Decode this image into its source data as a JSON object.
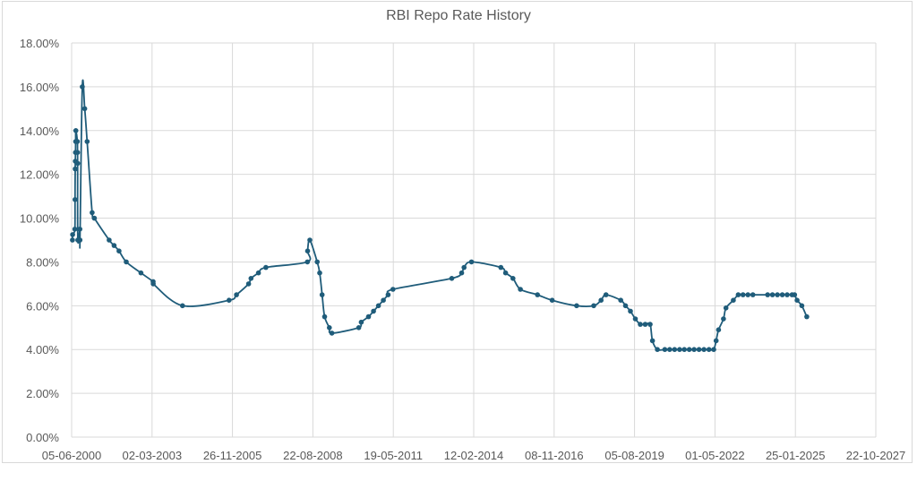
{
  "chart_data": {
    "type": "line",
    "title": "RBI Repo Rate History",
    "xlabel": "",
    "ylabel": "",
    "ylim": [
      0,
      18
    ],
    "y_ticks": [
      "0.00%",
      "2.00%",
      "4.00%",
      "6.00%",
      "8.00%",
      "10.00%",
      "12.00%",
      "14.00%",
      "16.00%",
      "18.00%"
    ],
    "x_ticks": [
      "05-06-2000",
      "02-03-2003",
      "26-11-2005",
      "22-08-2008",
      "19-05-2011",
      "12-02-2014",
      "08-11-2016",
      "05-08-2019",
      "01-05-2022",
      "25-01-2025",
      "22-10-2027"
    ],
    "xlim": [
      "05-06-2000",
      "22-10-2027"
    ],
    "grid": true,
    "legend": "none",
    "marker": "circle",
    "line_color": "#1f5c7a",
    "series": [
      {
        "name": "Repo Rate",
        "points": [
          [
            "2000-06",
            9.0
          ],
          [
            "2000-06",
            9.25
          ],
          [
            "2000-07",
            9.5
          ],
          [
            "2000-07",
            10.85
          ],
          [
            "2000-07",
            12.25
          ],
          [
            "2000-07",
            12.6
          ],
          [
            "2000-07",
            13.0
          ],
          [
            "2000-07",
            13.5
          ],
          [
            "2000-07",
            14.0
          ],
          [
            "2000-08",
            13.5
          ],
          [
            "2000-08",
            13.0
          ],
          [
            "2000-08",
            12.5
          ],
          [
            "2000-08",
            9.0
          ],
          [
            "2000-09",
            9.5
          ],
          [
            "2000-09",
            9.0
          ],
          [
            "2000-10",
            16.0
          ],
          [
            "2000-11",
            15.0
          ],
          [
            "2000-12",
            13.5
          ],
          [
            "2001-02",
            10.25
          ],
          [
            "2001-03",
            10.0
          ],
          [
            "2001-09",
            9.0
          ],
          [
            "2001-11",
            8.75
          ],
          [
            "2002-01",
            8.5
          ],
          [
            "2002-04",
            8.0
          ],
          [
            "2002-10",
            7.5
          ],
          [
            "2003-03",
            7.1
          ],
          [
            "2003-03",
            7.0
          ],
          [
            "2004-03",
            6.0
          ],
          [
            "2005-10",
            6.25
          ],
          [
            "2006-01",
            6.5
          ],
          [
            "2006-06",
            7.0
          ],
          [
            "2006-07",
            7.25
          ],
          [
            "2006-10",
            7.5
          ],
          [
            "2007-01",
            7.75
          ],
          [
            "2008-06",
            8.0
          ],
          [
            "2008-06",
            8.5
          ],
          [
            "2008-07",
            9.0
          ],
          [
            "2008-10",
            8.0
          ],
          [
            "2008-11",
            7.5
          ],
          [
            "2008-12",
            6.5
          ],
          [
            "2009-01",
            5.5
          ],
          [
            "2009-03",
            5.0
          ],
          [
            "2009-04",
            4.75
          ],
          [
            "2010-03",
            5.0
          ],
          [
            "2010-04",
            5.25
          ],
          [
            "2010-07",
            5.5
          ],
          [
            "2010-09",
            5.75
          ],
          [
            "2010-11",
            6.0
          ],
          [
            "2011-01",
            6.25
          ],
          [
            "2011-03",
            6.5
          ],
          [
            "2011-05",
            6.75
          ],
          [
            "2013-05",
            7.25
          ],
          [
            "2013-09",
            7.5
          ],
          [
            "2013-10",
            7.75
          ],
          [
            "2014-01",
            8.0
          ],
          [
            "2015-01",
            7.75
          ],
          [
            "2015-03",
            7.5
          ],
          [
            "2015-06",
            7.25
          ],
          [
            "2015-09",
            6.75
          ],
          [
            "2016-04",
            6.5
          ],
          [
            "2016-10",
            6.25
          ],
          [
            "2017-08",
            6.0
          ],
          [
            "2018-03",
            6.0
          ],
          [
            "2018-06",
            6.25
          ],
          [
            "2018-08",
            6.5
          ],
          [
            "2019-02",
            6.25
          ],
          [
            "2019-04",
            6.0
          ],
          [
            "2019-06",
            5.75
          ],
          [
            "2019-08",
            5.4
          ],
          [
            "2019-10",
            5.15
          ],
          [
            "2019-12",
            5.15
          ],
          [
            "2020-02",
            5.15
          ],
          [
            "2020-03",
            4.4
          ],
          [
            "2020-05",
            4.0
          ],
          [
            "2020-08",
            4.0
          ],
          [
            "2020-10",
            4.0
          ],
          [
            "2020-12",
            4.0
          ],
          [
            "2021-02",
            4.0
          ],
          [
            "2021-04",
            4.0
          ],
          [
            "2021-06",
            4.0
          ],
          [
            "2021-08",
            4.0
          ],
          [
            "2021-10",
            4.0
          ],
          [
            "2021-12",
            4.0
          ],
          [
            "2022-02",
            4.0
          ],
          [
            "2022-04",
            4.0
          ],
          [
            "2022-05",
            4.4
          ],
          [
            "2022-06",
            4.9
          ],
          [
            "2022-08",
            5.4
          ],
          [
            "2022-09",
            5.9
          ],
          [
            "2022-12",
            6.25
          ],
          [
            "2023-02",
            6.5
          ],
          [
            "2023-04",
            6.5
          ],
          [
            "2023-06",
            6.5
          ],
          [
            "2023-08",
            6.5
          ],
          [
            "2024-02",
            6.5
          ],
          [
            "2024-04",
            6.5
          ],
          [
            "2024-06",
            6.5
          ],
          [
            "2024-08",
            6.5
          ],
          [
            "2024-10",
            6.5
          ],
          [
            "2024-12",
            6.5
          ],
          [
            "2025-01",
            6.5
          ],
          [
            "2025-02",
            6.25
          ],
          [
            "2025-04",
            6.0
          ],
          [
            "2025-06",
            5.5
          ]
        ]
      }
    ]
  }
}
